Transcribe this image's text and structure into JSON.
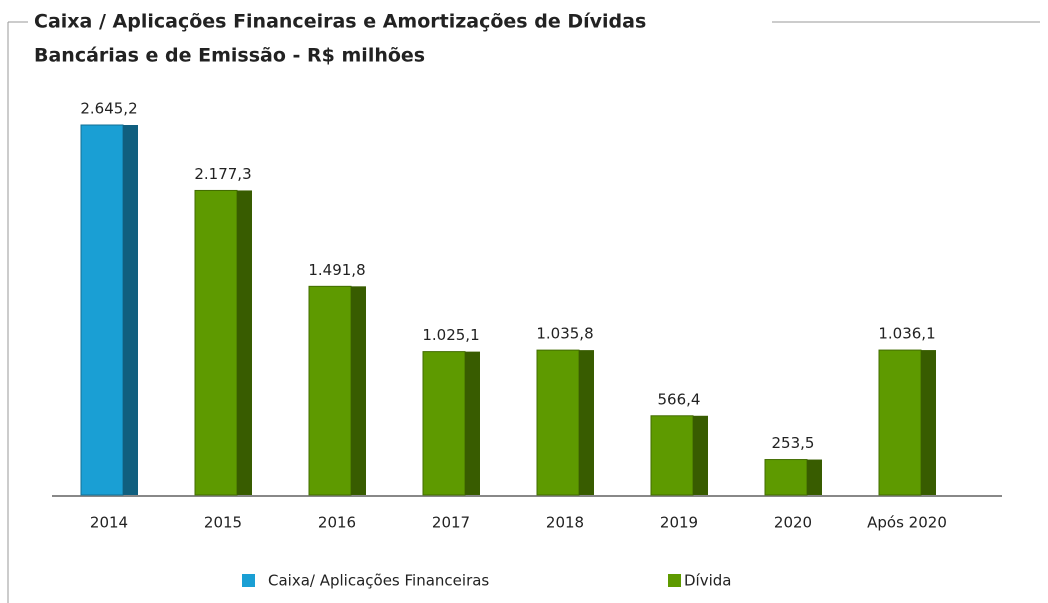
{
  "chart_data": {
    "type": "bar",
    "title": [
      "Caixa / Aplicações Financeiras e Amortizações de Dívidas",
      "Bancárias e de Emissão - R$ milhões"
    ],
    "categories": [
      "2014",
      "2015",
      "2016",
      "2017",
      "2018",
      "2019",
      "2020",
      "Após 2020"
    ],
    "series": [
      {
        "name": "Caixa/ Aplicações Financeiras",
        "color": "#1a9fd4",
        "values": [
          2645.2,
          null,
          null,
          null,
          null,
          null,
          null,
          null
        ],
        "value_labels": [
          "2.645,2",
          null,
          null,
          null,
          null,
          null,
          null,
          null
        ]
      },
      {
        "name": "Dívida",
        "color": "#5e9a00",
        "values": [
          null,
          2177.3,
          1491.8,
          1025.1,
          1035.8,
          566.4,
          253.5,
          1036.1
        ],
        "value_labels": [
          null,
          "2.177,3",
          "1.491,8",
          "1.025,1",
          "1.035,8",
          "566,4",
          "253,5",
          "1.036,1"
        ]
      }
    ],
    "legend": "bottom"
  }
}
